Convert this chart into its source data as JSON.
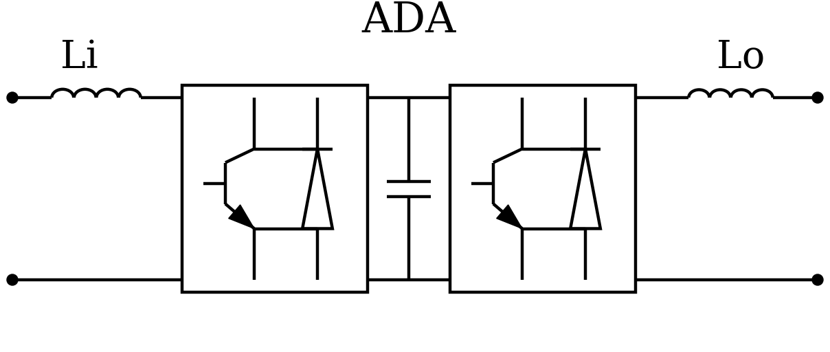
{
  "title": "ADA",
  "label_li": "Li",
  "label_lo": "Lo",
  "bg_color": "#ffffff",
  "line_color": "#000000",
  "lw": 3.2,
  "fig_width": 12.08,
  "fig_height": 5.12,
  "dpi": 100
}
